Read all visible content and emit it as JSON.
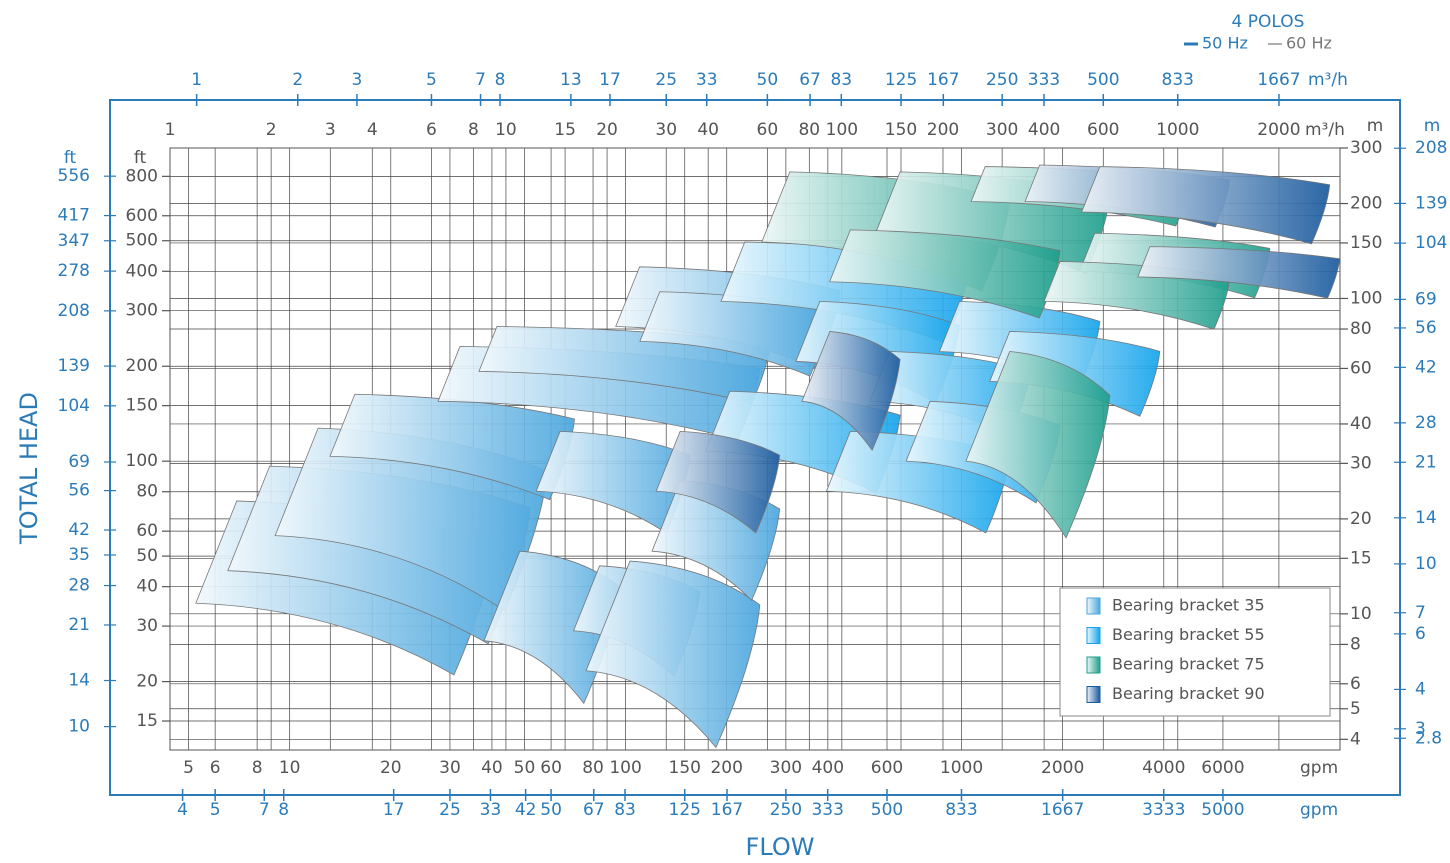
{
  "chart_data": {
    "type": "tiles",
    "log_scale": true,
    "grid": true,
    "y_title": "TOTAL HEAD",
    "x_title": "FLOW",
    "header": "4 POLOS",
    "frequencies": [
      {
        "name": "50 Hz",
        "color": "#2b7bb9"
      },
      {
        "name": "60 Hz",
        "color": "#777777"
      }
    ],
    "axes": [
      {
        "position": "top-inner",
        "lim": [
          1,
          3040
        ],
        "ticks": [
          1,
          2,
          3,
          4,
          6,
          8,
          10,
          15,
          20,
          30,
          40,
          60,
          80,
          100,
          150,
          200,
          300,
          400,
          600,
          1000,
          2000
        ],
        "unit": "m³/h",
        "color": "#555555",
        "grid": true
      },
      {
        "position": "top-outer",
        "lim": [
          0.833,
          2533
        ],
        "ticks": [
          1,
          2,
          3,
          5,
          7,
          8,
          13,
          17,
          25,
          33,
          50,
          67,
          83,
          125,
          167,
          250,
          333,
          500,
          833,
          1667
        ],
        "unit": "m³/h",
        "color": "#2b7bb9",
        "grid": false
      },
      {
        "position": "bottom-inner",
        "lim": [
          4.403,
          13386
        ],
        "ticks": [
          5,
          6,
          8,
          10,
          20,
          30,
          40,
          50,
          60,
          80,
          100,
          150,
          200,
          300,
          400,
          600,
          1000,
          2000,
          4000,
          6000
        ],
        "unit": "gpm",
        "color": "#555555",
        "grid": true
      },
      {
        "position": "bottom-outer",
        "lim": [
          3.669,
          11155
        ],
        "ticks": [
          4,
          5,
          7,
          8,
          17,
          25,
          33,
          42,
          50,
          67,
          83,
          125,
          167,
          250,
          333,
          500,
          833,
          1667,
          3333,
          5000
        ],
        "unit": "gpm",
        "color": "#2b7bb9",
        "grid": false
      },
      {
        "position": "right-inner",
        "lim": [
          3.7,
          300
        ],
        "ticks": [
          4,
          5,
          6,
          8,
          10,
          15,
          20,
          30,
          40,
          60,
          80,
          100,
          150,
          200,
          300
        ],
        "unit": "m",
        "color": "#555555",
        "grid": true
      },
      {
        "position": "right-outer",
        "lim": [
          2.57,
          208.3
        ],
        "ticks": [
          2.8,
          3,
          4,
          6,
          7,
          10,
          14,
          21,
          28,
          42,
          56,
          69,
          104,
          139,
          208
        ],
        "unit": "m",
        "color": "#2b7bb9",
        "grid": false
      },
      {
        "position": "left-inner",
        "lim": [
          12.14,
          984
        ],
        "ticks": [
          15,
          20,
          30,
          40,
          50,
          60,
          80,
          100,
          150,
          200,
          300,
          400,
          500,
          600,
          800
        ],
        "unit": "ft",
        "color": "#555555",
        "grid": true
      },
      {
        "position": "left-outer",
        "lim": [
          8.43,
          683
        ],
        "ticks": [
          10,
          14,
          21,
          28,
          35,
          42,
          56,
          69,
          104,
          139,
          208,
          278,
          347,
          417,
          556
        ],
        "unit": "ft",
        "color": "#2b7bb9",
        "grid": false
      }
    ],
    "series": [
      {
        "name": "Bearing bracket 35",
        "color": "#4aa6de",
        "tiles": [
          [
            1.58,
            9.27,
            22.8,
            10.8
          ],
          [
            1.98,
            11.8,
            29.4,
            13.7
          ],
          [
            2.76,
            13.3,
            38.8,
            17.7
          ],
          [
            3.55,
            16.0,
            49.7,
            31.6
          ],
          [
            7.3,
            57.0,
            70.5,
            47.2
          ],
          [
            9.4,
            61.1,
            81.5,
            58.7
          ],
          [
            25.0,
            98.6,
            126,
            81.5
          ],
          [
            28.7,
            92.1,
            105,
            73.1
          ],
          [
            11.0,
            21.8,
            15.8,
            8.22
          ],
          [
            19.0,
            37.8,
            14.2,
            8.84
          ],
          [
            23.4,
            57.0,
            14.7,
            6.6
          ],
          [
            14.5,
            35.3,
            37.9,
            24.5
          ],
          [
            33.0,
            65.3,
            26.4,
            15.8
          ]
        ]
      },
      {
        "name": "Bearing bracket 55",
        "color": "#14a4ec",
        "tiles": [
          [
            51.4,
            240,
            151,
            97.9
          ],
          [
            46.4,
            149,
            50.8,
            32.8
          ],
          [
            86,
            224,
            97.9,
            63.2
          ],
          [
            139,
            363,
            67.9,
            47.2
          ],
          [
            224,
            586,
            97.9,
            67.9
          ],
          [
            316,
            884,
            78.6,
            54.6
          ],
          [
            106,
            316,
            37.9,
            24.5
          ],
          [
            183,
            446,
            47.2,
            30.5
          ]
        ]
      },
      {
        "name": "Bearing bracket 75",
        "color": "#1d9e8c",
        "tiles": [
          [
            70,
            316,
            252,
            151
          ],
          [
            149,
            628,
            252,
            163
          ],
          [
            267,
            1086,
            262,
            203
          ],
          [
            106,
            446,
            165,
            113
          ],
          [
            566,
            1879,
            161,
            122
          ],
          [
            446,
            1429,
            131,
            97.9
          ],
          [
            316,
            628,
            67.9,
            30.5
          ]
        ]
      },
      {
        "name": "Bearing bracket 90",
        "color": "#1a5a9e",
        "tiles": [
          [
            388,
            1429,
            265,
            203
          ],
          [
            586,
            2833,
            262,
            188
          ],
          [
            826,
            3034,
            146,
            117
          ],
          [
            92.1,
            149,
            78.6,
            47.2
          ],
          [
            33.0,
            65.3,
            37.9,
            24.5
          ]
        ]
      }
    ]
  }
}
